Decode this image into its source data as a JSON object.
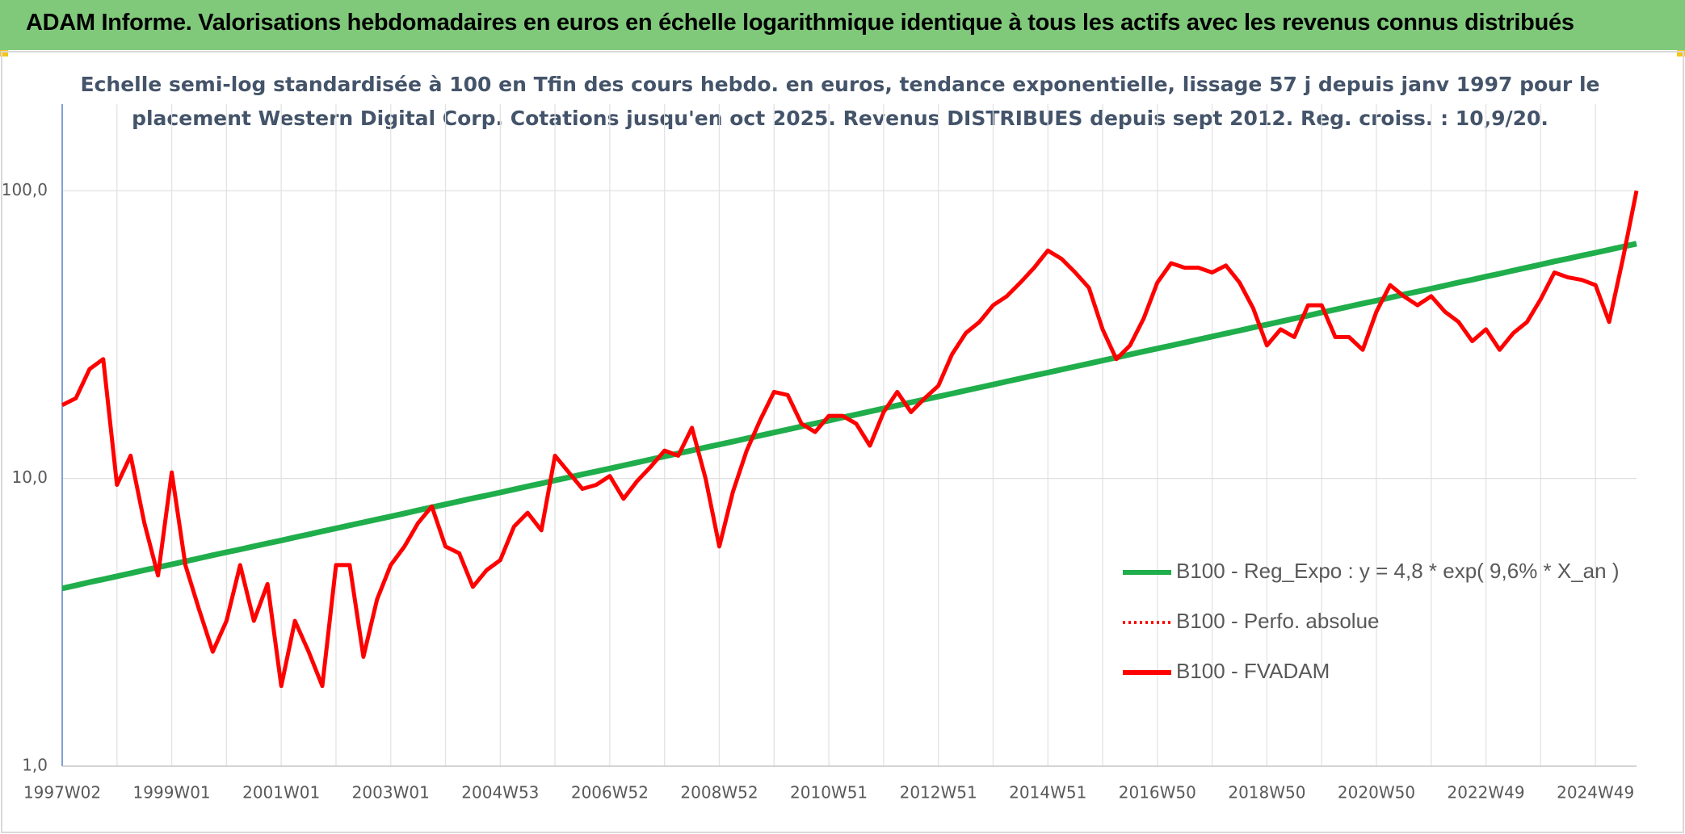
{
  "header": {
    "title": "ADAM Informe. Valorisations hebdomadaires en euros en échelle logarithmique identique à tous les actifs avec les revenus connus distribués"
  },
  "chart_data": {
    "type": "line",
    "subtitle": [
      "Echelle semi-log standardisée à 100 en Tfin des cours hebdo. en euros, tendance exponentielle, lissage 57 j depuis janv 1997 pour le",
      "placement Western Digital Corp. Cotations jusqu'en oct 2025. Revenus DISTRIBUES depuis sept 2012. Reg. croiss. : 10,9/20."
    ],
    "log_scale": true,
    "grid": true,
    "legend": "right",
    "ylim": [
      1,
      200
    ],
    "yticks": [
      {
        "value": 1,
        "label": "1,0"
      },
      {
        "value": 10,
        "label": "10,0"
      },
      {
        "value": 100,
        "label": "100,0"
      }
    ],
    "categories": [
      "1997W02",
      null,
      null,
      null,
      null,
      null,
      null,
      null,
      "1999W01",
      null,
      null,
      null,
      null,
      null,
      null,
      null,
      "2001W01",
      null,
      null,
      null,
      null,
      null,
      null,
      null,
      "2003W01",
      null,
      null,
      null,
      null,
      null,
      null,
      null,
      "2004W53",
      null,
      null,
      null,
      null,
      null,
      null,
      null,
      "2006W52",
      null,
      null,
      null,
      null,
      null,
      null,
      null,
      "2008W52",
      null,
      null,
      null,
      null,
      null,
      null,
      null,
      "2010W51",
      null,
      null,
      null,
      null,
      null,
      null,
      null,
      "2012W51",
      null,
      null,
      null,
      null,
      null,
      null,
      null,
      "2014W51",
      null,
      null,
      null,
      null,
      null,
      null,
      null,
      "2016W50",
      null,
      null,
      null,
      null,
      null,
      null,
      null,
      "2018W50",
      null,
      null,
      null,
      null,
      null,
      null,
      null,
      "2020W50",
      null,
      null,
      null,
      null,
      null,
      null,
      null,
      "2022W49",
      null,
      null,
      null,
      null,
      null,
      null,
      null,
      "2024W49",
      null,
      null,
      null
    ],
    "series": [
      {
        "name": "B100 - Reg_Expo : y = 4,8 * exp( 9,6% *  X_an )",
        "color": "#1fae4b",
        "dash": "solid",
        "values": [
          4.15,
          4.25,
          4.36,
          4.46,
          4.57,
          4.68,
          4.8,
          4.91,
          5.03,
          5.15,
          5.28,
          5.41,
          5.54,
          5.67,
          5.81,
          5.95,
          6.09,
          6.24,
          6.39,
          6.55,
          6.71,
          6.87,
          7.04,
          7.21,
          7.38,
          7.56,
          7.75,
          7.94,
          8.13,
          8.33,
          8.53,
          8.73,
          8.94,
          9.16,
          9.39,
          9.61,
          9.85,
          10.09,
          10.33,
          10.58,
          10.83,
          11.1,
          11.37,
          11.65,
          11.93,
          12.22,
          12.52,
          12.82,
          13.12,
          13.44,
          13.77,
          14.11,
          14.45,
          14.8,
          15.16,
          15.53,
          15.9,
          16.29,
          16.69,
          17.09,
          17.51,
          17.94,
          18.38,
          18.82,
          19.26,
          19.73,
          20.21,
          20.71,
          21.21,
          21.73,
          22.26,
          22.8,
          23.34,
          23.91,
          24.49,
          25.09,
          25.7,
          26.33,
          26.97,
          27.63,
          28.28,
          28.97,
          29.68,
          30.4,
          31.14,
          31.9,
          32.68,
          33.48,
          34.26,
          35.1,
          35.95,
          36.83,
          37.73,
          38.65,
          39.59,
          40.56,
          41.5,
          42.5,
          43.6,
          44.6,
          45.7,
          46.8,
          48.0,
          49.1,
          50.3,
          51.5,
          52.8,
          54.1,
          55.4,
          56.8,
          58.1,
          59.5,
          60.9,
          62.4,
          63.9,
          65.5
        ]
      },
      {
        "name": "B100 - Perfo. absolue",
        "color": "#ff0000",
        "dash": "dotted",
        "values": [
          null,
          null,
          null,
          null,
          null,
          null,
          null,
          null,
          null,
          null,
          null,
          null,
          null,
          null,
          null,
          null,
          null,
          null,
          null,
          null,
          null,
          null,
          null,
          null,
          null,
          null,
          null,
          null,
          null,
          null,
          null,
          null,
          null,
          null,
          null,
          null,
          null,
          null,
          null,
          null,
          null,
          null,
          null,
          null,
          null,
          null,
          null,
          null,
          null,
          null,
          null,
          null,
          null,
          null,
          null,
          null,
          null,
          null,
          null,
          null,
          null,
          null,
          null,
          null,
          null,
          null,
          null,
          null,
          null,
          null,
          null,
          null,
          null,
          null,
          null,
          null,
          null,
          null,
          null,
          null,
          null,
          null,
          null,
          null,
          null,
          null,
          null,
          null,
          null,
          null,
          null,
          null,
          null,
          null,
          null,
          null,
          null,
          null,
          null,
          null,
          null,
          null,
          null,
          null,
          null,
          null,
          null,
          null,
          null,
          null,
          null,
          null,
          null,
          null,
          null,
          null
        ]
      },
      {
        "name": "B100 - FVADAM",
        "color": "#ff0000",
        "dash": "solid",
        "values": [
          18,
          19,
          24,
          26,
          9.5,
          12,
          7,
          4.6,
          10.5,
          5,
          3.5,
          2.5,
          3.2,
          5.0,
          3.2,
          4.3,
          1.9,
          3.2,
          2.5,
          1.9,
          5.0,
          5.0,
          2.4,
          3.8,
          5.0,
          5.8,
          7.0,
          8.0,
          5.8,
          5.5,
          4.2,
          4.8,
          5.2,
          6.8,
          7.6,
          6.6,
          12,
          10.5,
          9.2,
          9.5,
          10.2,
          8.5,
          9.8,
          11,
          12.5,
          12,
          15,
          10,
          5.8,
          9,
          12.5,
          16,
          20,
          19.5,
          15.5,
          14.5,
          16.5,
          16.5,
          15.5,
          13,
          17,
          20,
          17,
          19,
          21,
          27,
          32,
          35,
          40,
          43,
          48,
          54,
          62,
          58,
          52,
          46,
          33,
          26,
          29,
          36,
          48,
          56,
          54,
          54,
          52,
          55,
          48,
          39,
          29,
          33,
          31,
          40,
          40,
          31,
          31,
          28,
          38,
          47,
          43,
          40,
          43,
          38,
          35,
          30,
          33,
          28,
          32,
          35,
          42,
          52,
          50,
          49,
          47,
          35,
          58,
          100
        ]
      }
    ]
  }
}
